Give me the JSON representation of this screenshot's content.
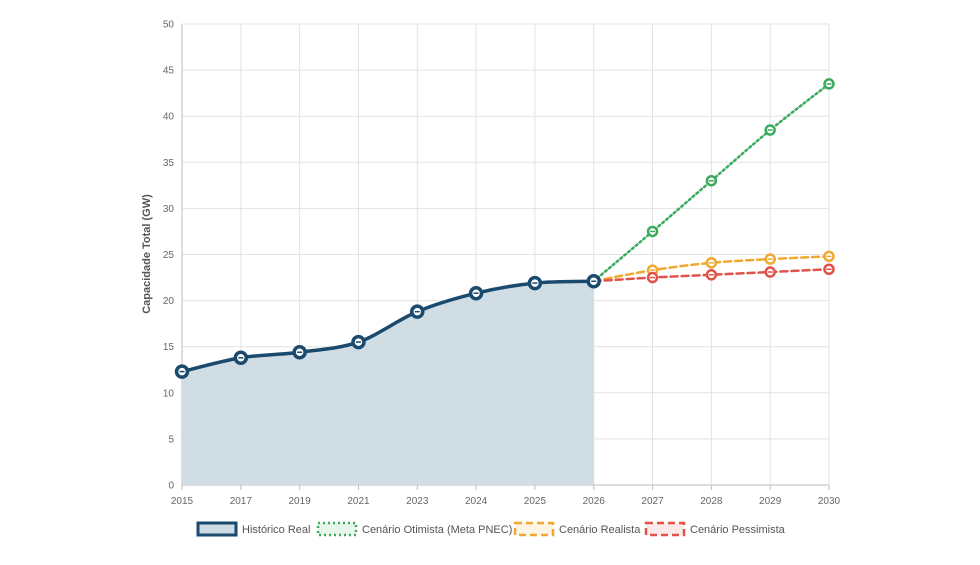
{
  "chart_data": {
    "type": "line",
    "ylabel": "Capacidade Total (GW)",
    "ylim": [
      0,
      50
    ],
    "yticks": [
      0,
      5,
      10,
      15,
      20,
      25,
      30,
      35,
      40,
      45,
      50
    ],
    "categories": [
      "2015",
      "2017",
      "2019",
      "2021",
      "2023",
      "2024",
      "2025",
      "2026",
      "2027",
      "2028",
      "2029",
      "2030"
    ],
    "grid": true,
    "legend_position": "bottom",
    "series": [
      {
        "name": "Histórico Real",
        "style": "solid-filled",
        "color": "#1a4a6e",
        "fill": "#cfdbe3",
        "values": [
          12.3,
          13.8,
          14.4,
          15.5,
          18.8,
          20.8,
          21.9,
          22.1,
          null,
          null,
          null,
          null
        ]
      },
      {
        "name": "Cenário Otimista (Meta PNEC)",
        "style": "dotted",
        "color": "#3aaa5c",
        "values": [
          null,
          null,
          null,
          null,
          null,
          null,
          null,
          22.1,
          27.5,
          33.0,
          38.5,
          43.5
        ]
      },
      {
        "name": "Cenário Realista",
        "style": "dashed",
        "color": "#f0a830",
        "values": [
          null,
          null,
          null,
          null,
          null,
          null,
          null,
          22.1,
          23.3,
          24.1,
          24.5,
          24.8
        ]
      },
      {
        "name": "Cenário Pessimista",
        "style": "dashed",
        "color": "#e0524a",
        "values": [
          null,
          null,
          null,
          null,
          null,
          null,
          null,
          22.1,
          22.5,
          22.8,
          23.1,
          23.4
        ]
      }
    ]
  }
}
